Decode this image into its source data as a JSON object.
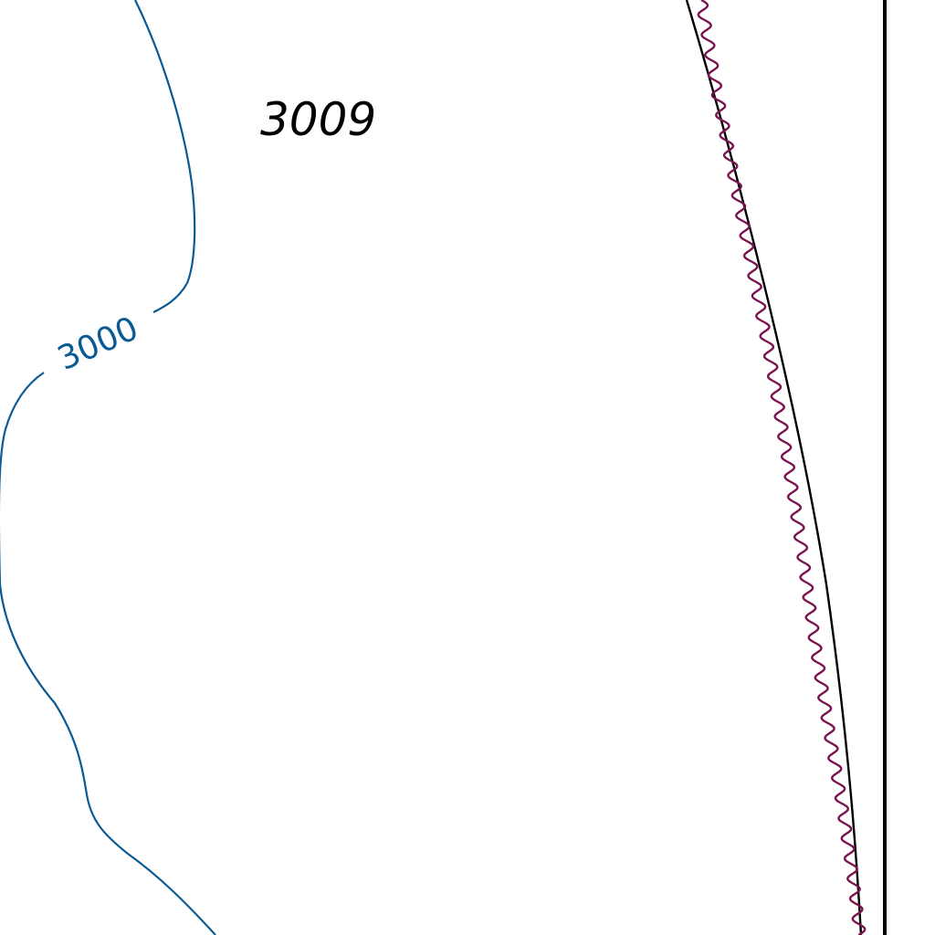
{
  "map": {
    "contour": {
      "label": "3000",
      "color": "#0a5a94"
    },
    "spot_height": {
      "label": "3009",
      "color": "#000000"
    },
    "boundary_line": {
      "color": "#000000"
    },
    "wavy_line": {
      "color": "#7a1450"
    },
    "frame_line": {
      "color": "#000000"
    }
  }
}
